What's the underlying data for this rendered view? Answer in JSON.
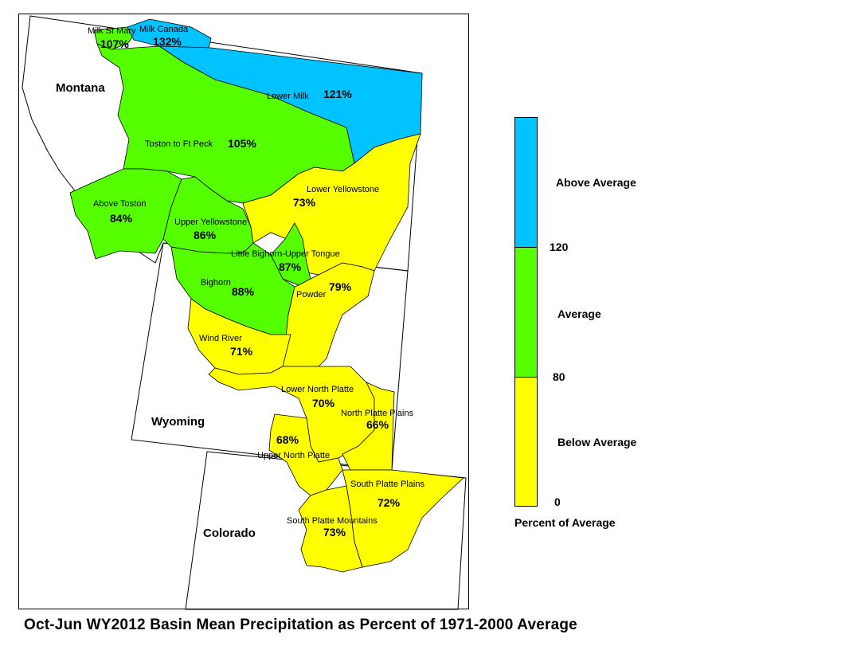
{
  "title": "Oct-Jun WY2012 Basin Mean Precipitation as Percent of 1971-2000 Average",
  "colors": {
    "above": "#00c3ff",
    "average": "#55ff00",
    "below": "#ffff00"
  },
  "states": [
    "Montana",
    "Wyoming",
    "Colorado"
  ],
  "legend": {
    "categories": [
      {
        "label": "Above Average",
        "color": "#00c3ff"
      },
      {
        "label": "Average",
        "color": "#55ff00"
      },
      {
        "label": "Below Average",
        "color": "#ffff00"
      }
    ],
    "breaks": [
      "120",
      "80",
      "0"
    ],
    "caption": "Percent of Average"
  },
  "basins": [
    {
      "name": "Milk St Mary",
      "value": "107%"
    },
    {
      "name": "Milk Canada",
      "value": "132%"
    },
    {
      "name": "Lower Milk",
      "value": "121%"
    },
    {
      "name": "Toston to Ft Peck",
      "value": "105%"
    },
    {
      "name": "Above Toston",
      "value": "84%"
    },
    {
      "name": "Upper Yellowstone",
      "value": "86%"
    },
    {
      "name": "Lower Yellowstone",
      "value": "73%"
    },
    {
      "name": "Little Bighorn-Upper Tongue",
      "value": "87%"
    },
    {
      "name": "Bighorn",
      "value": "88%"
    },
    {
      "name": "Powder",
      "value": "79%"
    },
    {
      "name": "Wind River",
      "value": "71%"
    },
    {
      "name": "Lower North Platte",
      "value": "70%"
    },
    {
      "name": "North Platte Plains",
      "value": "66%"
    },
    {
      "name": "Upper North Platte",
      "value": "68%"
    },
    {
      "name": "South Platte Plains",
      "value": "72%"
    },
    {
      "name": "South Platte Mountains",
      "value": "73%"
    }
  ]
}
